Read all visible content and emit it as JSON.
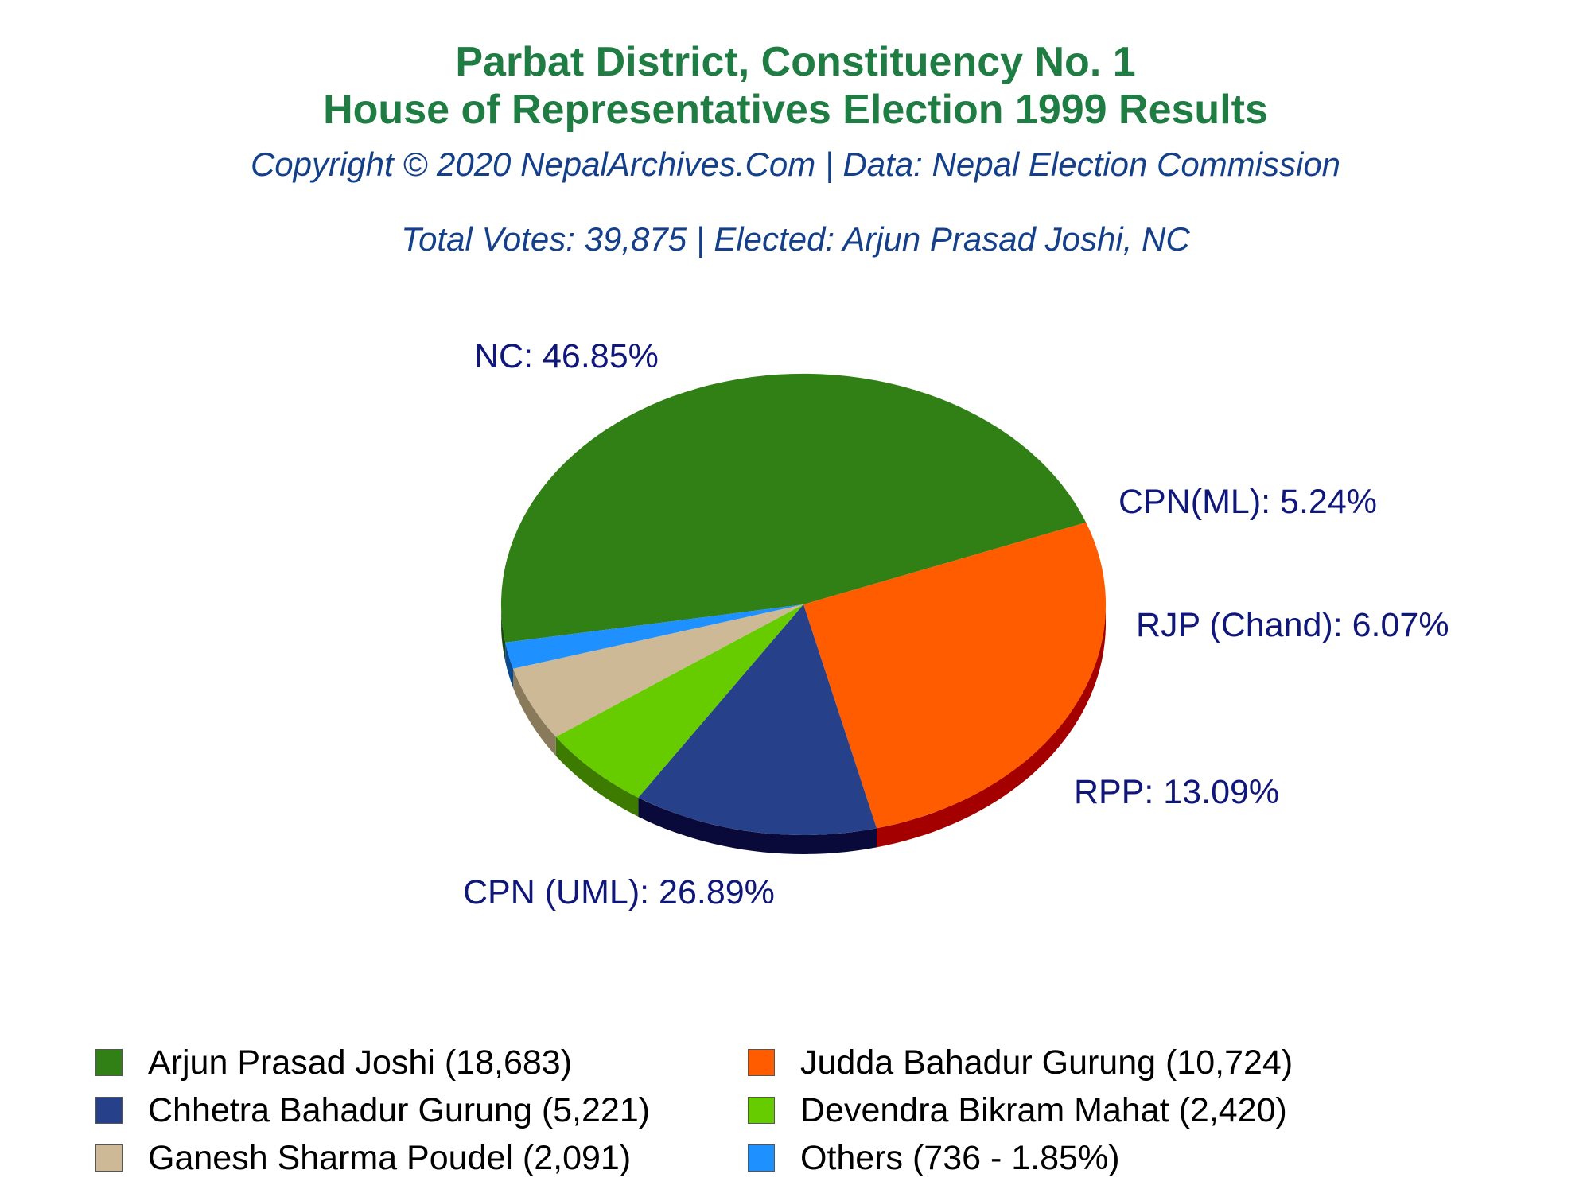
{
  "chart_data": {
    "type": "pie",
    "title": "Parbat District, Constituency No. 1",
    "title2": "House of Representatives Election 1999 Results",
    "subtitle": "Copyright © 2020 NepalArchives.Com | Data: Nepal Election Commission",
    "summary": "Total Votes: 39,875 | Elected: Arjun Prasad Joshi, NC",
    "slices": [
      {
        "party": "NC",
        "label": "NC: 46.85%",
        "percent": 46.85,
        "votes": 18683,
        "color": "#318016",
        "side_color": "#1a4a0b",
        "legend": "Arjun Prasad Joshi (18,683)"
      },
      {
        "party": "CPN (UML)",
        "label": "CPN (UML): 26.89%",
        "percent": 26.89,
        "votes": 10724,
        "color": "#ff5c00",
        "side_color": "#a50000",
        "legend": "Judda Bahadur Gurung (10,724)"
      },
      {
        "party": "RPP",
        "label": "RPP: 13.09%",
        "percent": 13.09,
        "votes": 5221,
        "color": "#27408a",
        "side_color": "#0a0a3a",
        "legend": "Chhetra Bahadur Gurung (5,221)"
      },
      {
        "party": "RJP (Chand)",
        "label": "RJP (Chand): 6.07%",
        "percent": 6.07,
        "votes": 2420,
        "color": "#66cc00",
        "side_color": "#3d7a00",
        "legend": "Devendra Bikram Mahat (2,420)"
      },
      {
        "party": "CPN(ML)",
        "label": "CPN(ML): 5.24%",
        "percent": 5.24,
        "votes": 2091,
        "color": "#cdb995",
        "side_color": "#8a7a5c",
        "legend": "Ganesh Sharma Poudel (2,091)"
      },
      {
        "party": "Others",
        "label": "",
        "percent": 1.85,
        "votes": 736,
        "color": "#1e90ff",
        "side_color": "#0a4a90",
        "legend": "Others (736 - 1.85%)"
      }
    ],
    "legend_placement": "bottom"
  }
}
